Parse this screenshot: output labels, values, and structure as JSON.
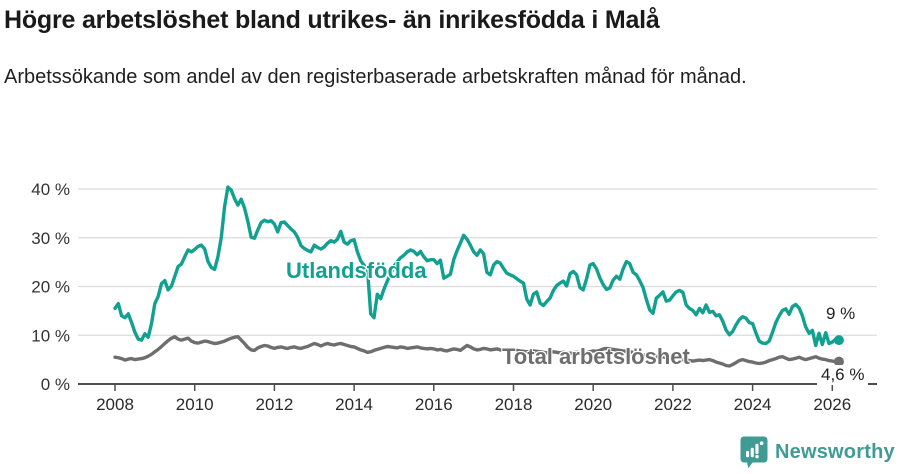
{
  "header": {
    "title": "Högre arbetslöshet bland utrikes- än inrikesfödda i Malå",
    "subtitle": "Arbetssökande som andel av den registerbaserade arbetskraften månad för månad."
  },
  "chart_data": {
    "type": "line",
    "title": "Högre arbetslöshet bland utrikes- än inrikesfödda i Malå",
    "subtitle": "Arbetssökande som andel av den registerbaserade arbetskraften månad för månad.",
    "frequency": "monthly",
    "x_start_year": 2008,
    "xlim": [
      2008,
      2026.25
    ],
    "ylim": [
      0,
      42
    ],
    "grid": "horizontal",
    "legend_position": "inline-labels",
    "x_tick_years": [
      2008,
      2010,
      2012,
      2014,
      2016,
      2018,
      2020,
      2022,
      2024,
      2026
    ],
    "x_tick_labels": [
      "2008",
      "2010",
      "2012",
      "2014",
      "2016",
      "2018",
      "2020",
      "2022",
      "2024",
      "2026"
    ],
    "y_ticks": [
      0,
      10,
      20,
      30,
      40
    ],
    "y_tick_labels": [
      "0 %",
      "10 %",
      "20 %",
      "30 %",
      "40 %"
    ],
    "series": [
      {
        "name": "Utlandsfödda",
        "color": "#12a090",
        "end_label": "9 %",
        "end_value": 9,
        "values": [
          15.5,
          16.5,
          14.0,
          13.6,
          14.4,
          12.6,
          10.6,
          9.2,
          9.0,
          10.3,
          9.6,
          12.4,
          16.5,
          18.0,
          20.6,
          21.2,
          19.3,
          20.1,
          22.1,
          24.1,
          24.6,
          26.1,
          27.5,
          27.1,
          27.6,
          28.2,
          28.5,
          27.7,
          25.1,
          23.9,
          23.5,
          26.1,
          30.1,
          36.4,
          40.4,
          39.8,
          38.0,
          36.7,
          37.9,
          36.1,
          33.4,
          30.1,
          29.9,
          31.6,
          33.1,
          33.6,
          33.3,
          33.5,
          32.8,
          31.2,
          33.1,
          33.2,
          32.5,
          31.8,
          31.2,
          30.1,
          28.4,
          27.8,
          27.4,
          27.1,
          28.5,
          28.0,
          27.7,
          28.1,
          28.9,
          29.4,
          29.1,
          29.7,
          31.3,
          29.1,
          28.7,
          29.4,
          29.6,
          27.1,
          25.3,
          24.3,
          23.8,
          14.4,
          13.6,
          18.4,
          17.5,
          19.5,
          21.1,
          22.6,
          24.1,
          25.1,
          25.9,
          26.4,
          27.1,
          27.5,
          27.2,
          26.5,
          27.2,
          26.1,
          25.3,
          25.5,
          25.5,
          24.7,
          25.4,
          21.7,
          22.1,
          22.5,
          25.5,
          27.3,
          28.9,
          30.5,
          29.7,
          28.5,
          27.1,
          26.4,
          27.5,
          26.7,
          22.9,
          22.4,
          24.4,
          25.1,
          24.8,
          23.7,
          22.7,
          22.4,
          22.1,
          21.6,
          21.1,
          20.7,
          17.4,
          16.2,
          18.4,
          18.9,
          16.6,
          16.1,
          16.9,
          17.6,
          19.2,
          20.2,
          20.7,
          21.1,
          20.1,
          22.6,
          23.1,
          22.4,
          19.8,
          19.3,
          21.6,
          24.4,
          24.7,
          23.6,
          21.8,
          20.4,
          19.4,
          19.7,
          21.3,
          22.1,
          21.5,
          23.6,
          25.1,
          24.7,
          22.9,
          22.4,
          21.2,
          19.8,
          17.4,
          15.2,
          14.5,
          17.6,
          18.2,
          18.9,
          17.0,
          17.2,
          18.1,
          18.9,
          19.2,
          18.8,
          16.2,
          15.5,
          15.1,
          14.2,
          15.5,
          14.6,
          16.2,
          14.7,
          14.9,
          14.0,
          14.2,
          12.9,
          11.1,
          10.1,
          10.8,
          12.1,
          13.2,
          13.8,
          13.5,
          12.6,
          12.4,
          10.5,
          8.8,
          8.4,
          8.3,
          8.8,
          10.6,
          12.6,
          14.0,
          15.1,
          15.4,
          14.3,
          15.9,
          16.3,
          15.6,
          14.0,
          11.7,
          10.4,
          11.0,
          7.9,
          10.4,
          8.1,
          10.5,
          8.3,
          8.6,
          9.2,
          9.0
        ]
      },
      {
        "name": "Total arbetslöshet",
        "color": "#6e6e6e",
        "end_label": "4,6 %",
        "end_value": 4.6,
        "values": [
          5.5,
          5.4,
          5.2,
          4.9,
          5.1,
          5.2,
          5.0,
          5.1,
          5.2,
          5.4,
          5.7,
          6.1,
          6.6,
          7.1,
          7.7,
          8.3,
          8.9,
          9.4,
          9.7,
          9.2,
          9.0,
          9.2,
          9.4,
          8.8,
          8.5,
          8.4,
          8.6,
          8.8,
          8.7,
          8.5,
          8.3,
          8.4,
          8.6,
          8.8,
          9.1,
          9.4,
          9.6,
          9.7,
          9.0,
          8.3,
          7.5,
          7.0,
          6.9,
          7.4,
          7.7,
          7.9,
          7.8,
          7.5,
          7.3,
          7.5,
          7.6,
          7.4,
          7.3,
          7.5,
          7.6,
          7.4,
          7.3,
          7.5,
          7.7,
          8.0,
          8.3,
          8.1,
          7.8,
          8.1,
          8.3,
          8.1,
          8.0,
          8.2,
          8.3,
          8.1,
          7.9,
          7.7,
          7.6,
          7.3,
          7.0,
          6.8,
          6.5,
          6.6,
          6.9,
          7.1,
          7.3,
          7.5,
          7.7,
          7.6,
          7.5,
          7.4,
          7.6,
          7.5,
          7.3,
          7.4,
          7.5,
          7.6,
          7.4,
          7.3,
          7.2,
          7.3,
          7.2,
          7.0,
          7.1,
          6.9,
          6.8,
          7.0,
          7.2,
          7.1,
          6.9,
          7.4,
          7.9,
          7.6,
          7.2,
          7.0,
          7.1,
          7.3,
          7.2,
          7.0,
          7.1,
          7.2,
          7.0,
          6.9,
          7.0,
          7.1,
          7.0,
          6.9,
          6.8,
          6.7,
          6.6,
          6.7,
          6.8,
          6.7,
          6.6,
          6.5,
          6.4,
          6.5,
          6.6,
          6.5,
          6.4,
          6.5,
          6.4,
          6.3,
          6.4,
          6.5,
          6.4,
          6.3,
          6.4,
          6.6,
          6.8,
          6.7,
          6.9,
          7.2,
          7.3,
          7.2,
          7.1,
          7.0,
          6.9,
          6.8,
          6.7,
          6.6,
          6.5,
          6.4,
          6.2,
          6.0,
          5.8,
          5.6,
          5.5,
          5.6,
          5.7,
          5.6,
          5.4,
          5.3,
          5.2,
          5.3,
          5.2,
          5.0,
          4.9,
          4.8,
          4.7,
          4.8,
          4.9,
          4.8,
          4.9,
          5.0,
          4.8,
          4.5,
          4.3,
          4.1,
          3.8,
          3.7,
          4.0,
          4.4,
          4.8,
          5.0,
          4.8,
          4.6,
          4.5,
          4.3,
          4.2,
          4.3,
          4.5,
          4.8,
          5.0,
          5.2,
          5.5,
          5.6,
          5.3,
          5.0,
          5.1,
          5.3,
          5.5,
          5.2,
          5.0,
          5.2,
          5.4,
          5.6,
          5.3,
          5.1,
          5.0,
          4.8,
          4.7,
          4.6,
          4.6
        ]
      }
    ]
  },
  "colors": {
    "accent_teal": "#12a090",
    "series_gray": "#6e6e6e",
    "grid": "#dcdcdc",
    "axis": "#4d4d4d",
    "tick_text": "#333333",
    "title_text": "#1a1a1a"
  },
  "footer": {
    "brand": "Newsworthy",
    "brand_color": "#3f9b94"
  }
}
